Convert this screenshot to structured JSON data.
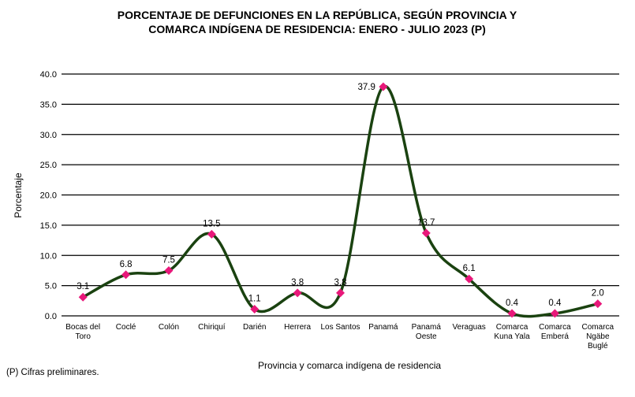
{
  "chart_data": {
    "type": "line",
    "title": [
      "PORCENTAJE DE DEFUNCIONES EN LA REPÚBLICA, SEGÚN PROVINCIA Y",
      "COMARCA INDÍGENA DE RESIDENCIA: ENERO - JULIO 2023 (P)"
    ],
    "xlabel": "Provincia  y comarca indígena  de residencia",
    "ylabel": "Porcentaje",
    "ylim": [
      0,
      40
    ],
    "yticks": [
      "0.0",
      "5.0",
      "10.0",
      "15.0",
      "20.0",
      "25.0",
      "30.0",
      "35.0",
      "40.0"
    ],
    "grid": true,
    "categories": [
      [
        "Bocas del",
        "Toro"
      ],
      [
        "Coclé"
      ],
      [
        "Colón"
      ],
      [
        "Chiriquí"
      ],
      [
        "Darién"
      ],
      [
        "Herrera"
      ],
      [
        "Los Santos"
      ],
      [
        "Panamá"
      ],
      [
        "Panamá",
        "Oeste"
      ],
      [
        "Veraguas"
      ],
      [
        "Comarca",
        "Kuna Yala"
      ],
      [
        "Comarca",
        "Emberá"
      ],
      [
        "Comarca",
        "Ngäbe",
        "Buglé"
      ]
    ],
    "values": [
      3.1,
      6.8,
      7.5,
      13.5,
      1.1,
      3.8,
      3.8,
      37.9,
      13.7,
      6.1,
      0.4,
      0.4,
      2.0
    ],
    "data_labels": [
      "3.1",
      "6.8",
      "7.5",
      "13.5",
      "1.1",
      "3.8",
      "3.8",
      "37.9",
      "13.7",
      "6.1",
      "0.4",
      "0.4",
      "2.0"
    ],
    "line_color": "#1a4210",
    "marker_color": "#e8187a"
  },
  "footnote": "(P) Cifras  preliminares."
}
